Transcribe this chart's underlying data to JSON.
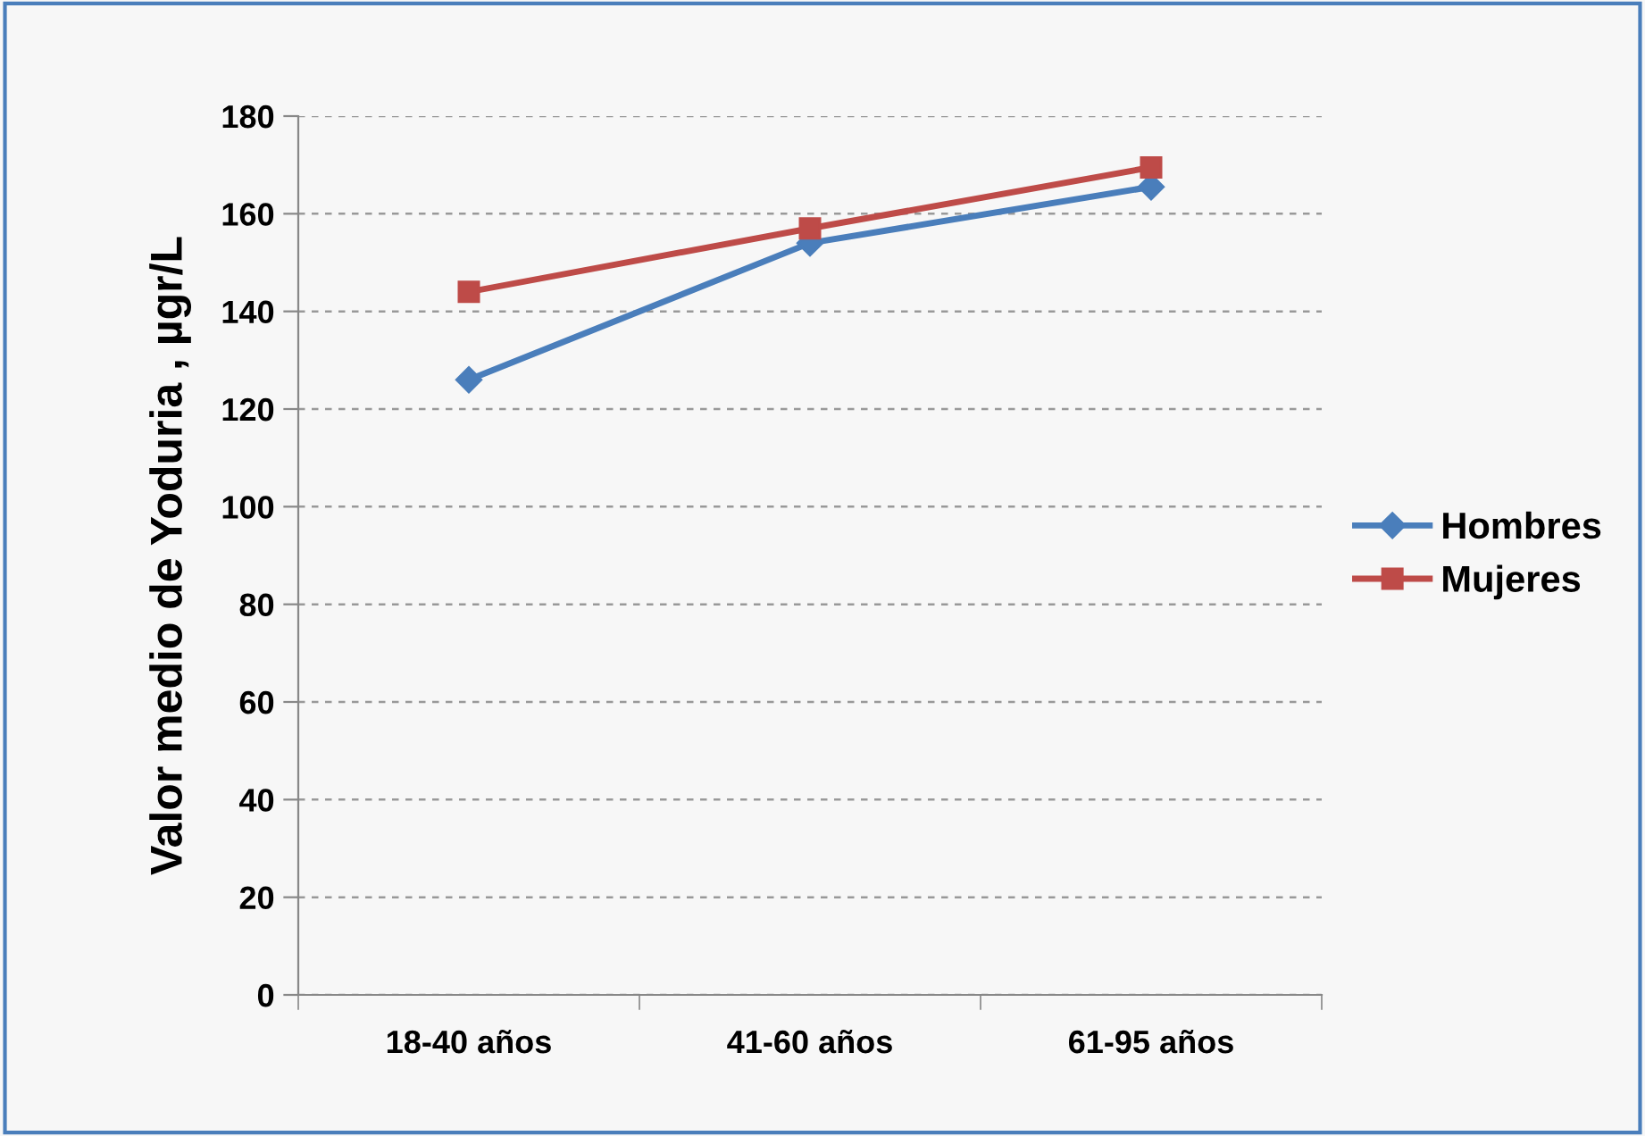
{
  "chart_data": {
    "type": "line",
    "ylabel": "Valor medio de Yoduria , µgr/L",
    "categories": [
      "18-40 años",
      "41-60 años",
      "61-95 años"
    ],
    "series": [
      {
        "name": "Hombres",
        "color": "#4a7ebb",
        "marker": "diamond",
        "values": [
          126,
          154,
          165.5
        ]
      },
      {
        "name": "Mujeres",
        "color": "#be4b48",
        "marker": "square",
        "values": [
          144,
          157,
          169.5
        ]
      }
    ],
    "ylim": [
      0,
      180
    ],
    "yticks": [
      0,
      20,
      40,
      60,
      80,
      100,
      120,
      140,
      160,
      180
    ],
    "grid": "y",
    "legend": "right"
  }
}
